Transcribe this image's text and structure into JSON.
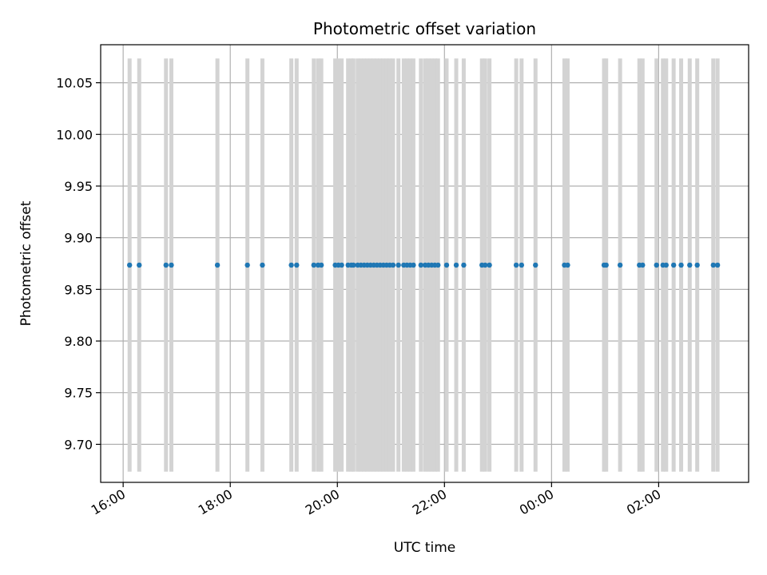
{
  "chart_data": {
    "type": "scatter",
    "title": "Photometric offset variation",
    "xlabel": "UTC time",
    "ylabel": "Photometric offset",
    "x_unit": "hours since 16:00 UTC",
    "xlim": [
      -0.42,
      11.68
    ],
    "ylim": [
      9.6632,
      10.0868
    ],
    "y_value": 9.8735,
    "error_range": [
      9.6735,
      10.0735
    ],
    "grid": true,
    "x_ticks": [
      {
        "value": 0,
        "label": "16:00"
      },
      {
        "value": 2,
        "label": "18:00"
      },
      {
        "value": 4,
        "label": "20:00"
      },
      {
        "value": 6,
        "label": "22:00"
      },
      {
        "value": 8,
        "label": "00:00"
      },
      {
        "value": 10,
        "label": "02:00"
      }
    ],
    "y_ticks": [
      {
        "value": 9.7,
        "label": "9.70"
      },
      {
        "value": 9.75,
        "label": "9.75"
      },
      {
        "value": 9.8,
        "label": "9.80"
      },
      {
        "value": 9.85,
        "label": "9.85"
      },
      {
        "value": 9.9,
        "label": "9.90"
      },
      {
        "value": 9.95,
        "label": "9.95"
      },
      {
        "value": 10.0,
        "label": "10.00"
      },
      {
        "value": 10.05,
        "label": "10.05"
      }
    ],
    "x": [
      0.12,
      0.3,
      0.8,
      0.9,
      1.76,
      2.32,
      2.6,
      3.14,
      3.24,
      3.56,
      3.64,
      3.7,
      3.96,
      4.02,
      4.08,
      4.2,
      4.26,
      4.3,
      4.38,
      4.44,
      4.5,
      4.56,
      4.62,
      4.68,
      4.74,
      4.8,
      4.86,
      4.92,
      4.98,
      5.04,
      5.14,
      5.24,
      5.3,
      5.36,
      5.42,
      5.56,
      5.64,
      5.7,
      5.76,
      5.82,
      5.88,
      6.04,
      6.22,
      6.36,
      6.7,
      6.76,
      6.84,
      7.34,
      7.44,
      7.7,
      8.24,
      8.3,
      8.98,
      9.02,
      9.28,
      9.64,
      9.7,
      9.96,
      10.08,
      10.14,
      10.28,
      10.42,
      10.58,
      10.72,
      11.02,
      11.1
    ],
    "series_color": "#1f77b4",
    "errorbar_color": "#d3d3d3"
  }
}
